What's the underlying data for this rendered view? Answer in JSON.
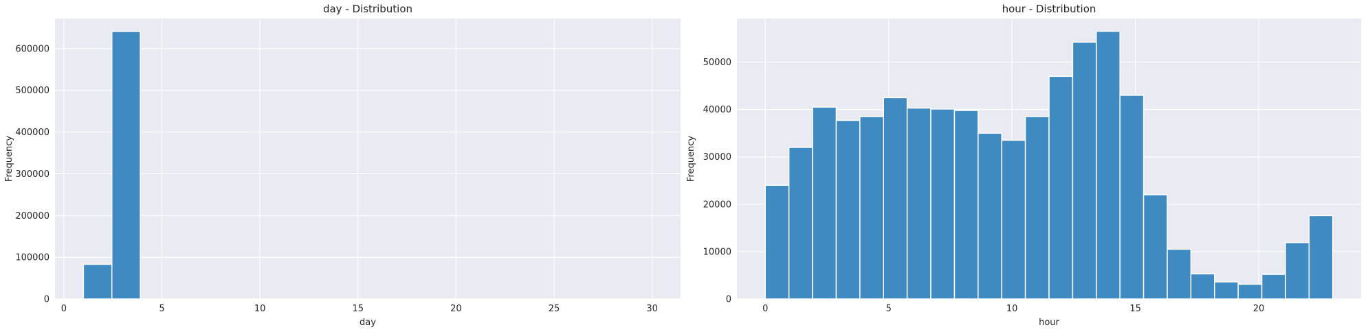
{
  "colors": {
    "plot_bg": "#eaeaf2",
    "grid": "#ffffff",
    "bar": "#3f8ac1",
    "bar_edge": "#ffffff"
  },
  "chart_data": [
    {
      "type": "bar",
      "title": "day - Distribution",
      "xlabel": "day",
      "ylabel": "Frequency",
      "xlim": [
        -0.45,
        31.45
      ],
      "ylim": [
        0,
        672000
      ],
      "xticks": [
        0,
        5,
        10,
        15,
        20,
        25,
        30
      ],
      "yticks": [
        0,
        100000,
        200000,
        300000,
        400000,
        500000,
        600000
      ],
      "xtick_labels": [
        "0",
        "5",
        "10",
        "15",
        "20",
        "25",
        "30"
      ],
      "ytick_labels": [
        "0",
        "100000",
        "200000",
        "300000",
        "400000",
        "500000",
        "600000"
      ],
      "grid": true,
      "bins": [
        {
          "x0": 1.0,
          "x1": 2.45,
          "value": 83000
        },
        {
          "x0": 2.45,
          "x1": 3.9,
          "value": 641000
        }
      ]
    },
    {
      "type": "bar",
      "title": "hour - Distribution",
      "xlabel": "hour",
      "ylabel": "Frequency",
      "xlim": [
        -1.15,
        24.15
      ],
      "ylim": [
        0,
        59200
      ],
      "xticks": [
        0,
        5,
        10,
        15,
        20
      ],
      "yticks": [
        0,
        10000,
        20000,
        30000,
        40000,
        50000
      ],
      "xtick_labels": [
        "0",
        "5",
        "10",
        "15",
        "20"
      ],
      "ytick_labels": [
        "0",
        "10000",
        "20000",
        "30000",
        "40000",
        "50000"
      ],
      "grid": true,
      "bins": [
        {
          "x0": 0.0,
          "x1": 0.958,
          "value": 24000
        },
        {
          "x0": 0.958,
          "x1": 1.917,
          "value": 32000
        },
        {
          "x0": 1.917,
          "x1": 2.875,
          "value": 40500
        },
        {
          "x0": 2.875,
          "x1": 3.833,
          "value": 37700
        },
        {
          "x0": 3.833,
          "x1": 4.792,
          "value": 38500
        },
        {
          "x0": 4.792,
          "x1": 5.75,
          "value": 42500
        },
        {
          "x0": 5.75,
          "x1": 6.708,
          "value": 40300
        },
        {
          "x0": 6.708,
          "x1": 7.667,
          "value": 40100
        },
        {
          "x0": 7.667,
          "x1": 8.625,
          "value": 39800
        },
        {
          "x0": 8.625,
          "x1": 9.583,
          "value": 35000
        },
        {
          "x0": 9.583,
          "x1": 10.542,
          "value": 33500
        },
        {
          "x0": 10.542,
          "x1": 11.5,
          "value": 38500
        },
        {
          "x0": 11.5,
          "x1": 12.458,
          "value": 47000
        },
        {
          "x0": 12.458,
          "x1": 13.417,
          "value": 54200
        },
        {
          "x0": 13.417,
          "x1": 14.375,
          "value": 56500
        },
        {
          "x0": 14.375,
          "x1": 15.333,
          "value": 43000
        },
        {
          "x0": 15.333,
          "x1": 16.292,
          "value": 22000
        },
        {
          "x0": 16.292,
          "x1": 17.25,
          "value": 10500
        },
        {
          "x0": 17.25,
          "x1": 18.208,
          "value": 5300
        },
        {
          "x0": 18.208,
          "x1": 19.167,
          "value": 3600
        },
        {
          "x0": 19.167,
          "x1": 20.125,
          "value": 3100
        },
        {
          "x0": 20.125,
          "x1": 21.083,
          "value": 5200
        },
        {
          "x0": 21.083,
          "x1": 22.042,
          "value": 11900
        },
        {
          "x0": 22.042,
          "x1": 23.0,
          "value": 17600
        }
      ]
    }
  ]
}
